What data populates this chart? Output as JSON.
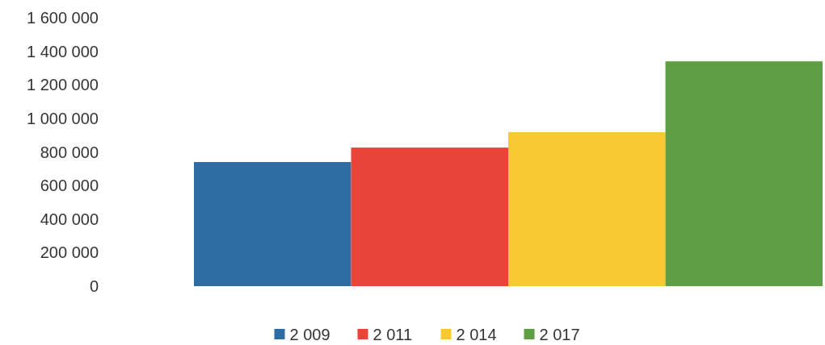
{
  "chart_data": {
    "type": "bar",
    "categories": [
      null
    ],
    "series": [
      {
        "name": "2 009",
        "color": "#2e6da4",
        "values": [
          740000
        ]
      },
      {
        "name": "2 011",
        "color": "#e8443a",
        "values": [
          826000
        ]
      },
      {
        "name": "2 014",
        "color": "#f9c933",
        "values": [
          918000
        ]
      },
      {
        "name": "2 017",
        "color": "#5f9e44",
        "values": [
          1340000
        ]
      }
    ],
    "ylim": [
      0,
      1600000
    ],
    "yticks": [
      {
        "value": 0,
        "label": "0"
      },
      {
        "value": 200000,
        "label": "200 000"
      },
      {
        "value": 400000,
        "label": "400 000"
      },
      {
        "value": 600000,
        "label": "600 000"
      },
      {
        "value": 800000,
        "label": "800 000"
      },
      {
        "value": 1000000,
        "label": "1 000 000"
      },
      {
        "value": 1200000,
        "label": "1 200 000"
      },
      {
        "value": 1400000,
        "label": "1 400 000"
      },
      {
        "value": 1600000,
        "label": "1 600 000"
      }
    ],
    "grid": false,
    "legend": "bottom"
  }
}
